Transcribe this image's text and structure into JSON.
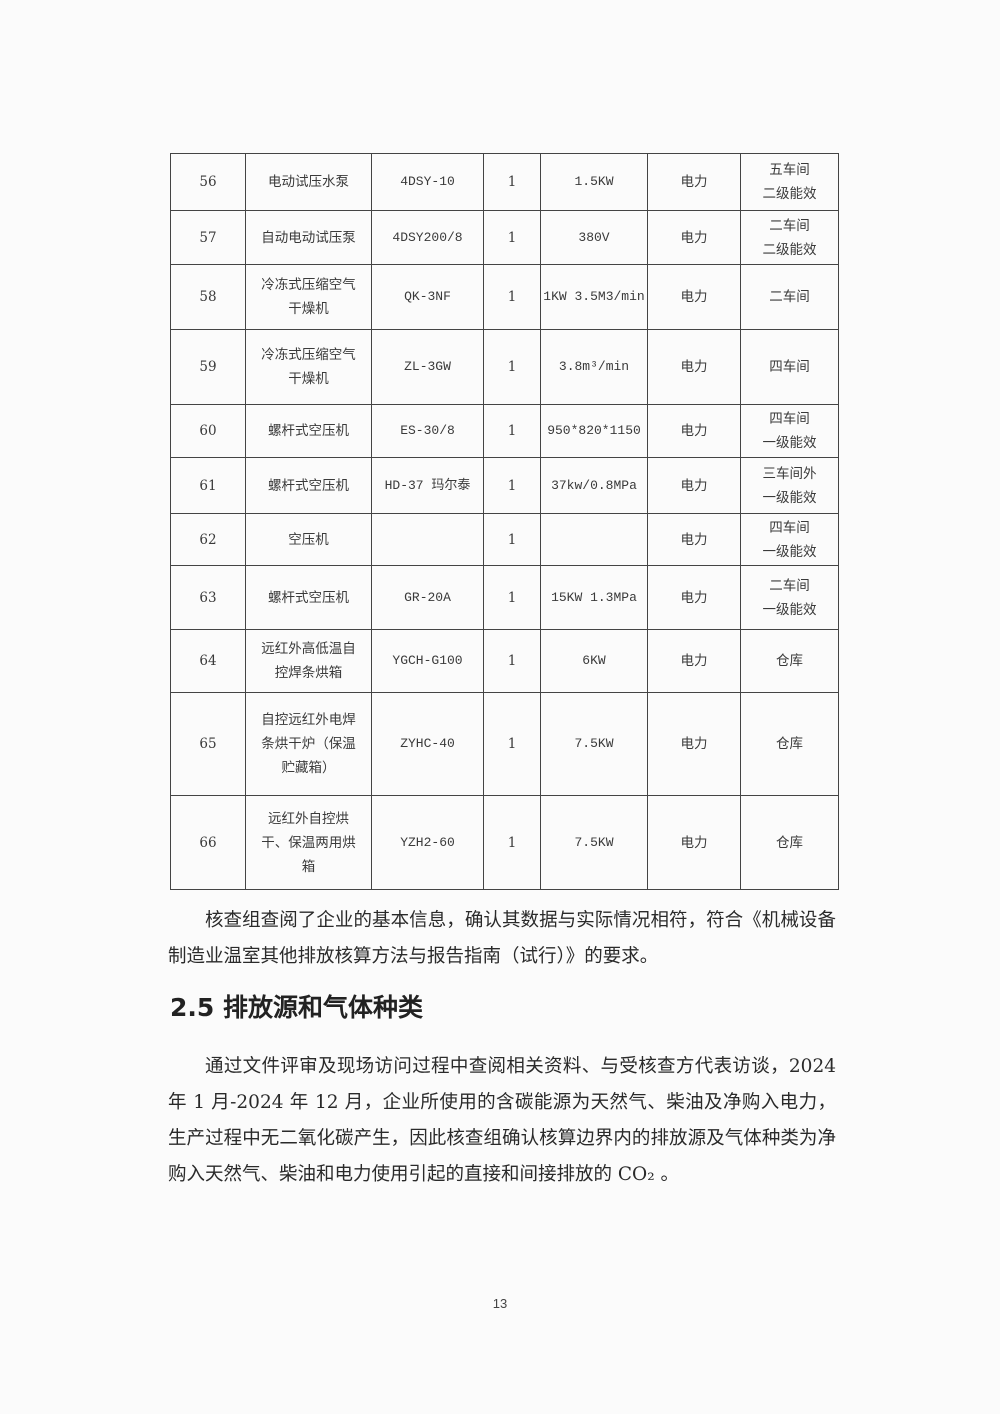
{
  "table": {
    "rows": [
      {
        "no": "56",
        "name": "电动试压水泵",
        "model": "4DSY-10",
        "qty": "1",
        "spec": "1.5KW",
        "energy": "电力",
        "location": "五车间\n二级能效"
      },
      {
        "no": "57",
        "name": "自动电动试压泵",
        "model": "4DSY200/8",
        "qty": "1",
        "spec": "380V",
        "energy": "电力",
        "location": "二车间\n二级能效"
      },
      {
        "no": "58",
        "name": "冷冻式压缩空气\n干燥机",
        "model": "QK-3NF",
        "qty": "1",
        "spec": "1KW 3.5M3/min",
        "energy": "电力",
        "location": "二车间"
      },
      {
        "no": "59",
        "name": "冷冻式压缩空气\n干燥机",
        "model": "ZL-3GW",
        "qty": "1",
        "spec": "3.8m³/min",
        "energy": "电力",
        "location": "四车间"
      },
      {
        "no": "60",
        "name": "螺杆式空压机",
        "model": "ES-30/8",
        "qty": "1",
        "spec": "950*820*1150",
        "energy": "电力",
        "location": "四车间\n一级能效"
      },
      {
        "no": "61",
        "name": "螺杆式空压机",
        "model": "HD-37 玛尔泰",
        "qty": "1",
        "spec": "37kw/0.8MPa",
        "energy": "电力",
        "location": "三车间外\n一级能效"
      },
      {
        "no": "62",
        "name": "空压机",
        "model": "",
        "qty": "1",
        "spec": "",
        "energy": "电力",
        "location": "四车间\n一级能效"
      },
      {
        "no": "63",
        "name": "螺杆式空压机",
        "model": "GR-20A",
        "qty": "1",
        "spec": "15KW 1.3MPa",
        "energy": "电力",
        "location": "二车间\n一级能效"
      },
      {
        "no": "64",
        "name": "远红外高低温自\n控焊条烘箱",
        "model": "YGCH-G100",
        "qty": "1",
        "spec": "6KW",
        "energy": "电力",
        "location": "仓库"
      },
      {
        "no": "65",
        "name": "自控远红外电焊\n条烘干炉（保温\n贮藏箱）",
        "model": "ZYHC-40",
        "qty": "1",
        "spec": "7.5KW",
        "energy": "电力",
        "location": "仓库"
      },
      {
        "no": "66",
        "name": "远红外自控烘\n干、保温两用烘\n箱",
        "model": "YZH2-60",
        "qty": "1",
        "spec": "7.5KW",
        "energy": "电力",
        "location": "仓库"
      }
    ]
  },
  "paragraph1": "核查组查阅了企业的基本信息，确认其数据与实际情况相符，符合《机械设备制造业温室其他排放核算方法与报告指南（试行）》的要求。",
  "section_heading": "2.5 排放源和气体种类",
  "paragraph2": "通过文件评审及现场访问过程中查阅相关资料、与受核查方代表访谈，2024年 1 月-2024 年 12 月，企业所使用的含碳能源为天然气、柴油及净购入电力，生产过程中无二氧化碳产生，因此核查组确认核算边界内的排放源及气体种类为净购入天然气、柴油和电力使用引起的直接和间接排放的 CO₂ 。",
  "page_number": "13"
}
